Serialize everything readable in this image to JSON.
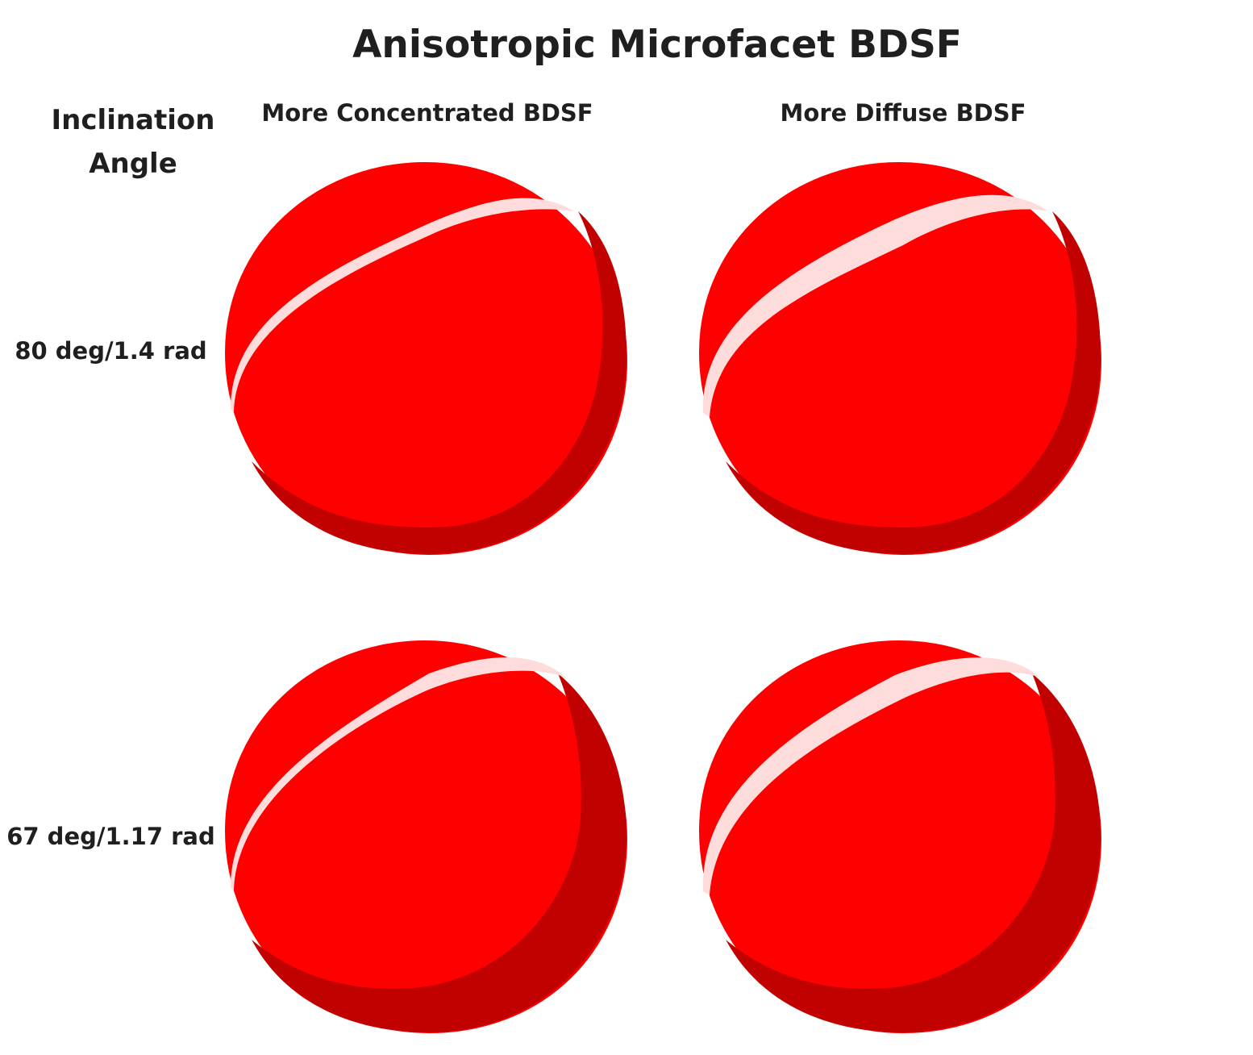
{
  "title": "Anisotropic Microfacet BDSF",
  "row_header": {
    "line1": "Inclination",
    "line2": "Angle"
  },
  "columns": [
    {
      "label": "More Concentrated BDSF"
    },
    {
      "label": "More Diffuse BDSF"
    }
  ],
  "rows": [
    {
      "label": "80 deg/1.4 rad"
    },
    {
      "label": "67 deg/1.17 rad"
    }
  ],
  "colors": {
    "sphere_body": "#ff0000",
    "sphere_shadow": "#c10000",
    "highlight": "#ffdcdc",
    "text": "#1f1f1f"
  },
  "spheres": [
    {
      "row": "80 deg/1.4 rad",
      "column": "More Concentrated BDSF",
      "shadow": "narrow",
      "highlight": "thin"
    },
    {
      "row": "80 deg/1.4 rad",
      "column": "More Diffuse BDSF",
      "shadow": "narrow",
      "highlight": "wide"
    },
    {
      "row": "67 deg/1.17 rad",
      "column": "More Concentrated BDSF",
      "shadow": "wide",
      "highlight": "thin"
    },
    {
      "row": "67 deg/1.17 rad",
      "column": "More Diffuse BDSF",
      "shadow": "wide",
      "highlight": "wide"
    }
  ]
}
